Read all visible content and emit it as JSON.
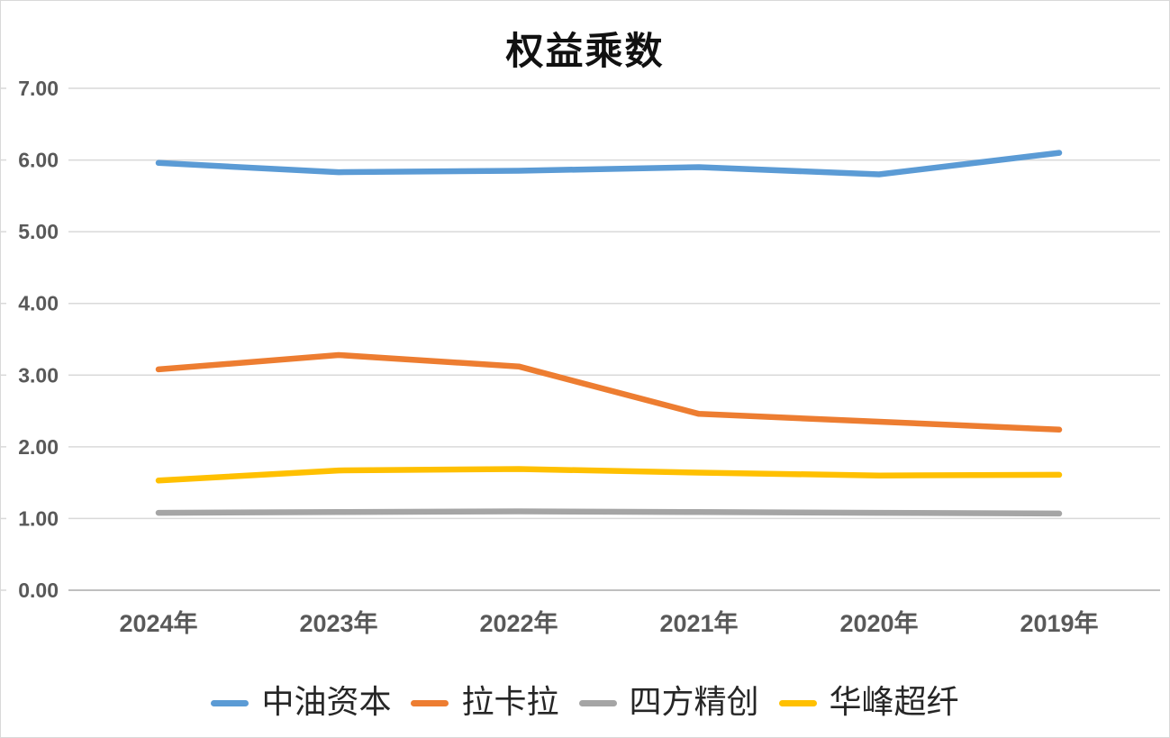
{
  "chart_data": {
    "type": "line",
    "title": "权益乘数",
    "categories": [
      "2024年",
      "2023年",
      "2022年",
      "2021年",
      "2020年",
      "2019年"
    ],
    "series": [
      {
        "name": "中油资本",
        "color": "#5B9BD5",
        "values": [
          5.96,
          5.83,
          5.85,
          5.9,
          5.8,
          6.1
        ]
      },
      {
        "name": "拉卡拉",
        "color": "#ED7D31",
        "values": [
          3.08,
          3.28,
          3.12,
          2.46,
          2.35,
          2.24
        ]
      },
      {
        "name": "四方精创",
        "color": "#A5A5A5",
        "values": [
          1.08,
          1.09,
          1.1,
          1.09,
          1.08,
          1.07
        ]
      },
      {
        "name": "华峰超纤",
        "color": "#FFC000",
        "values": [
          1.53,
          1.67,
          1.69,
          1.64,
          1.6,
          1.61
        ]
      }
    ],
    "ylim": [
      0,
      7
    ],
    "ytick_step": 1,
    "ytick_labels": [
      "0.00",
      "1.00",
      "2.00",
      "3.00",
      "4.00",
      "5.00",
      "6.00",
      "7.00"
    ],
    "xlabel": "",
    "ylabel": "",
    "grid": true,
    "legend_position": "bottom",
    "colors": {
      "gridline": "#D9D9D9",
      "axis_line": "#BFBFBF",
      "tick_label": "#595959",
      "title": "#111111",
      "legend_text": "#262626",
      "background": "#FFFFFF",
      "frame_border": "#D9D9D9"
    }
  }
}
